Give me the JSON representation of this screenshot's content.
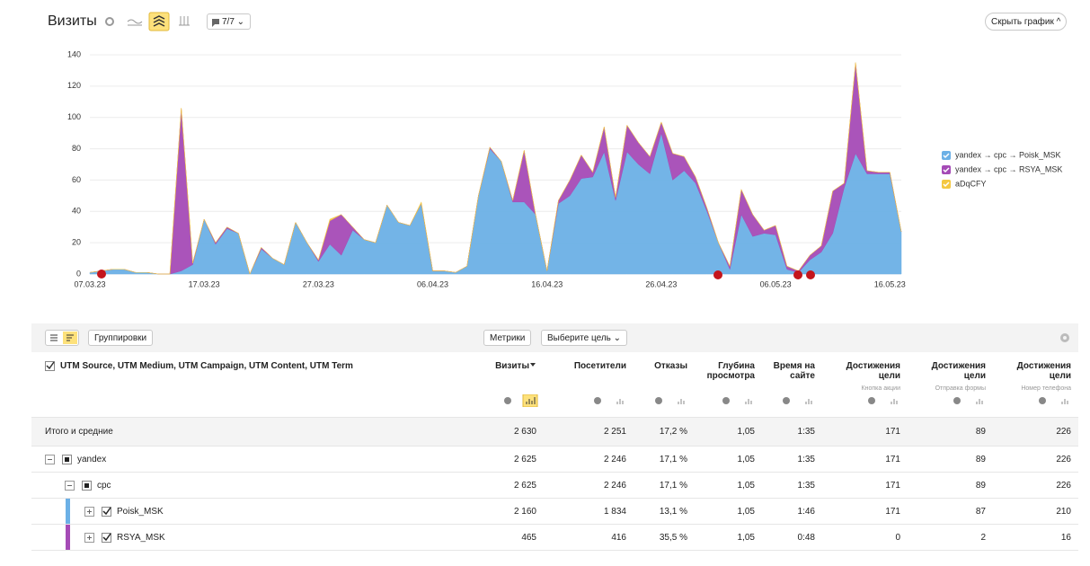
{
  "header": {
    "title": "Визиты",
    "segments_button": "7/7",
    "hide_chart_button": "Скрыть график"
  },
  "chart_data": {
    "type": "area",
    "stacked": true,
    "categories": [
      "07.03.23",
      null,
      null,
      null,
      null,
      null,
      null,
      null,
      null,
      null,
      "17.03.23",
      null,
      null,
      null,
      null,
      null,
      null,
      null,
      null,
      null,
      "27.03.23",
      null,
      null,
      null,
      null,
      null,
      null,
      null,
      null,
      null,
      "06.04.23",
      null,
      null,
      null,
      null,
      null,
      null,
      null,
      null,
      null,
      "16.04.23",
      null,
      null,
      null,
      null,
      null,
      null,
      null,
      null,
      null,
      "26.04.23",
      null,
      null,
      null,
      null,
      null,
      null,
      null,
      null,
      null,
      "06.05.23",
      null,
      null,
      null,
      null,
      null,
      null,
      null,
      null,
      null,
      "16.05.23",
      null
    ],
    "series": [
      {
        "name": "yandex → cpc → Poisk_MSK",
        "color": "#6cb0e6",
        "values": [
          1,
          2,
          3,
          3,
          1,
          1,
          0,
          0,
          2,
          6,
          35,
          19,
          29,
          26,
          0,
          16,
          10,
          6,
          33,
          20,
          8,
          19,
          12,
          28,
          22,
          20,
          44,
          33,
          31,
          45,
          2,
          2,
          1,
          5,
          50,
          80,
          72,
          46,
          46,
          38,
          2,
          45,
          50,
          61,
          62,
          78,
          47,
          78,
          70,
          64,
          90,
          60,
          66,
          58,
          40,
          20,
          3,
          38,
          24,
          26,
          25,
          3,
          1,
          9,
          14,
          26,
          55,
          77,
          64,
          64,
          64,
          27
        ]
      },
      {
        "name": "yandex → cpc → RSYA_MSK",
        "color": "#a54bb6",
        "values": [
          0,
          0,
          0,
          0,
          0,
          0,
          0,
          0,
          104,
          1,
          0,
          1,
          1,
          0,
          0,
          1,
          0,
          0,
          0,
          0,
          1,
          15,
          26,
          2,
          0,
          0,
          0,
          0,
          0,
          0,
          0,
          0,
          0,
          0,
          0,
          1,
          0,
          1,
          33,
          0,
          0,
          2,
          10,
          15,
          3,
          16,
          2,
          17,
          14,
          11,
          7,
          17,
          9,
          4,
          2,
          0,
          2,
          16,
          14,
          2,
          6,
          2,
          1,
          3,
          4,
          27,
          3,
          58,
          2,
          1,
          1,
          0
        ]
      },
      {
        "name": "aDqCFY",
        "color": "#f4c842",
        "values": [
          0,
          0,
          0,
          0,
          0,
          0,
          0,
          0,
          0,
          0,
          0,
          0,
          0,
          0,
          0,
          0,
          0,
          0,
          0,
          0,
          0,
          1,
          0,
          0,
          0,
          0,
          0,
          0,
          0,
          1,
          0,
          0,
          0,
          0,
          0,
          0,
          0,
          0,
          0,
          0,
          0,
          0,
          0,
          0,
          0,
          0,
          0,
          0,
          0,
          0,
          0,
          0,
          0,
          0,
          0,
          0,
          0,
          0,
          0,
          0,
          0,
          0,
          0,
          0,
          0,
          0,
          0,
          0,
          0,
          0,
          0,
          0
        ]
      }
    ],
    "ylim": [
      0,
      140
    ],
    "yticks": [
      0,
      20,
      40,
      60,
      80,
      100,
      120,
      140
    ],
    "grid": true,
    "legend": "right"
  },
  "table": {
    "toolbar": {
      "groupings": "Группировки",
      "metrics": "Метрики",
      "goal": "Выберите цель"
    },
    "dimension_header": "UTM Source, UTM Medium, UTM Campaign, UTM Content, UTM Term",
    "columns": [
      {
        "title": "Визиты"
      },
      {
        "title": "Посетители"
      },
      {
        "title": "Отказы"
      },
      {
        "title": "Глубина просмотра"
      },
      {
        "title": "Время на сайте"
      },
      {
        "title": "Достижения цели",
        "subtitle": "Кнопка акции"
      },
      {
        "title": "Достижения цели",
        "subtitle": "Отправка формы"
      },
      {
        "title": "Достижения цели",
        "subtitle": "Номер телефона"
      }
    ],
    "total": {
      "label": "Итого и средние",
      "cells": [
        "2 630",
        "2 251",
        "17,2 %",
        "1,05",
        "1:35",
        "171",
        "89",
        "226"
      ]
    },
    "rows": [
      {
        "label": "yandex",
        "cells": [
          "2 625",
          "2 246",
          "17,1 %",
          "1,05",
          "1:35",
          "171",
          "89",
          "226"
        ],
        "children": [
          {
            "label": "cpc",
            "cells": [
              "2 625",
              "2 246",
              "17,1 %",
              "1,05",
              "1:35",
              "171",
              "89",
              "226"
            ],
            "children": [
              {
                "label": "Poisk_MSK",
                "checked": true,
                "color": "#6cb0e6",
                "cells": [
                  "2 160",
                  "1 834",
                  "13,1 %",
                  "1,05",
                  "1:46",
                  "171",
                  "87",
                  "210"
                ]
              },
              {
                "label": "RSYA_MSK",
                "checked": true,
                "color": "#a54bb6",
                "cells": [
                  "465",
                  "416",
                  "35,5 %",
                  "1,05",
                  "0:48",
                  "0",
                  "2",
                  "16"
                ]
              }
            ]
          }
        ]
      }
    ]
  }
}
